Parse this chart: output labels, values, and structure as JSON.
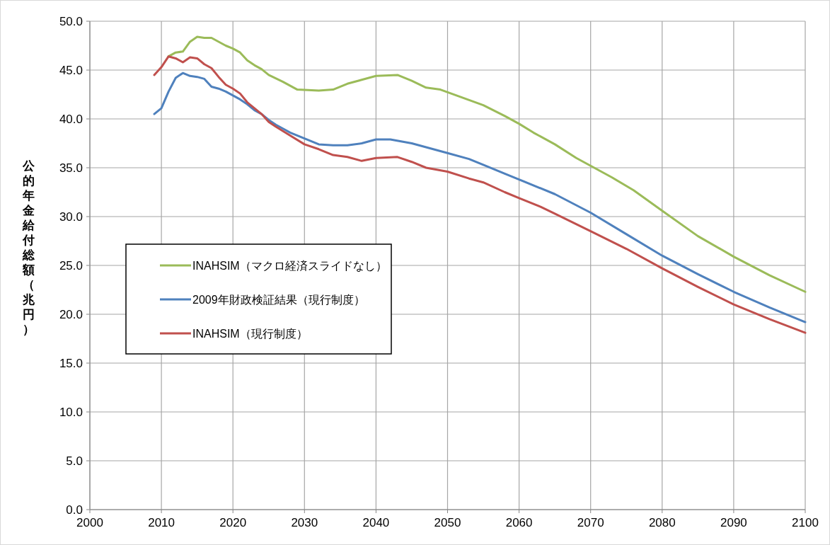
{
  "chart_data": {
    "type": "line",
    "ylabel": "公的年金給付総額（兆円）",
    "xlim": [
      2000,
      2100
    ],
    "xticks": [
      2000,
      2010,
      2020,
      2030,
      2040,
      2050,
      2060,
      2070,
      2080,
      2090,
      2100
    ],
    "ylim": [
      0,
      50
    ],
    "yticks": [
      {
        "value": 0,
        "label": "0.0"
      },
      {
        "value": 5,
        "label": "5.0"
      },
      {
        "value": 10,
        "label": "10.0"
      },
      {
        "value": 15,
        "label": "15.0"
      },
      {
        "value": 20,
        "label": "20.0"
      },
      {
        "value": 25,
        "label": "25.0"
      },
      {
        "value": 30,
        "label": "30.0"
      },
      {
        "value": 35,
        "label": "35.0"
      },
      {
        "value": 40,
        "label": "40.0"
      },
      {
        "value": 45,
        "label": "45.0"
      },
      {
        "value": 50,
        "label": "50.0"
      }
    ],
    "grid": true,
    "legend": "left",
    "marker": "none",
    "line_style": "solid",
    "series": [
      {
        "name": "INAHSIM（マクロ経済スライドなし）",
        "color": "#9bbb59",
        "x": [
          2011,
          2012,
          2013,
          2014,
          2015,
          2016,
          2017,
          2018,
          2019,
          2020,
          2021,
          2022,
          2023,
          2024,
          2025,
          2027,
          2029,
          2032,
          2034,
          2036,
          2038,
          2040,
          2043,
          2045,
          2047,
          2049,
          2052,
          2055,
          2058,
          2060,
          2062,
          2065,
          2068,
          2070,
          2073,
          2076,
          2080,
          2085,
          2090,
          2095,
          2100
        ],
        "values": [
          46.4,
          46.8,
          46.9,
          47.9,
          48.4,
          48.3,
          48.3,
          47.9,
          47.5,
          47.2,
          46.8,
          46.0,
          45.5,
          45.1,
          44.5,
          43.8,
          43.0,
          42.9,
          43.0,
          43.6,
          44.0,
          44.4,
          44.5,
          43.9,
          43.2,
          43.0,
          42.2,
          41.4,
          40.3,
          39.5,
          38.6,
          37.4,
          36.0,
          35.2,
          34.0,
          32.7,
          30.6,
          28.0,
          25.9,
          24.0,
          22.3
        ]
      },
      {
        "name": "2009年財政検証結果（現行制度）",
        "color": "#4f81bd",
        "x": [
          2009,
          2010,
          2011,
          2012,
          2013,
          2014,
          2015,
          2016,
          2017,
          2018,
          2019,
          2020,
          2021,
          2022,
          2023,
          2024,
          2025,
          2026,
          2027,
          2028,
          2030,
          2032,
          2034,
          2036,
          2038,
          2040,
          2042,
          2045,
          2050,
          2053,
          2055,
          2058,
          2060,
          2065,
          2070,
          2075,
          2080,
          2085,
          2090,
          2095,
          2100
        ],
        "values": [
          40.5,
          41.1,
          42.8,
          44.2,
          44.7,
          44.4,
          44.3,
          44.1,
          43.3,
          43.1,
          42.8,
          42.4,
          42.0,
          41.5,
          40.9,
          40.5,
          39.9,
          39.4,
          39.0,
          38.6,
          38.0,
          37.4,
          37.3,
          37.3,
          37.5,
          37.9,
          37.9,
          37.5,
          36.5,
          35.9,
          35.3,
          34.4,
          33.8,
          32.3,
          30.4,
          28.2,
          26.0,
          24.1,
          22.3,
          20.7,
          19.2
        ]
      },
      {
        "name": "INAHSIM（現行制度）",
        "color": "#c0504d",
        "x": [
          2009,
          2010,
          2011,
          2012,
          2013,
          2014,
          2015,
          2016,
          2017,
          2018,
          2019,
          2020,
          2021,
          2022,
          2023,
          2024,
          2025,
          2026,
          2028,
          2030,
          2032,
          2034,
          2036,
          2038,
          2040,
          2043,
          2045,
          2047,
          2050,
          2053,
          2055,
          2058,
          2060,
          2063,
          2065,
          2070,
          2075,
          2080,
          2085,
          2090,
          2095,
          2100
        ],
        "values": [
          44.5,
          45.3,
          46.4,
          46.2,
          45.8,
          46.3,
          46.2,
          45.6,
          45.2,
          44.3,
          43.5,
          43.1,
          42.6,
          41.7,
          41.1,
          40.5,
          39.7,
          39.2,
          38.3,
          37.4,
          36.9,
          36.3,
          36.1,
          35.7,
          36.0,
          36.1,
          35.6,
          35.0,
          34.6,
          33.9,
          33.5,
          32.5,
          31.9,
          31.0,
          30.3,
          28.5,
          26.7,
          24.7,
          22.8,
          21.0,
          19.5,
          18.1
        ]
      }
    ]
  }
}
